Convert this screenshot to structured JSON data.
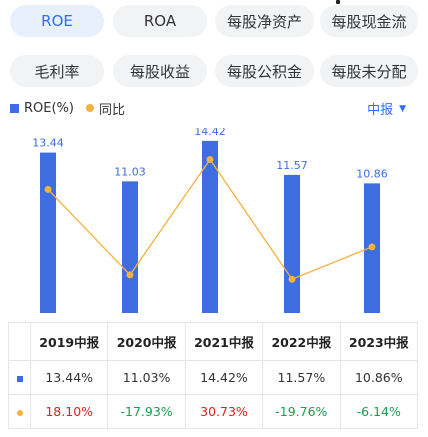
{
  "tabs_row1": [
    {
      "label": "ROE",
      "active": true
    },
    {
      "label": "ROA",
      "active": false
    },
    {
      "label": "每股净资产",
      "active": false
    },
    {
      "label": "每股现金流",
      "active": false
    }
  ],
  "tabs_row2": [
    {
      "label": "毛利率",
      "active": false
    },
    {
      "label": "每股收益",
      "active": false
    },
    {
      "label": "每股公积金",
      "active": false
    },
    {
      "label": "每股未分配",
      "active": false
    }
  ],
  "legend": {
    "bar_label": "ROE(%)",
    "line_label": "同比",
    "period_select": "中报",
    "caret": "▼"
  },
  "colors": {
    "bar": "#3d6de0",
    "line": "#f5b13d",
    "accent": "#2f6bff",
    "positive": "#e02020",
    "negative": "#1a9e50"
  },
  "chart_data": {
    "type": "bar",
    "categories": [
      "2019中报",
      "2020中报",
      "2021中报",
      "2022中报",
      "2023中报"
    ],
    "series": [
      {
        "name": "ROE(%)",
        "type": "bar",
        "values": [
          13.44,
          11.03,
          14.42,
          11.57,
          10.86
        ]
      },
      {
        "name": "同比",
        "type": "line",
        "values": [
          18.1,
          -17.93,
          30.73,
          -19.76,
          -6.14
        ]
      }
    ],
    "bar_ylim": [
      0,
      15.5
    ],
    "line_ylim": [
      -34,
      44
    ],
    "value_labels": [
      "13.44",
      "11.03",
      "14.42",
      "11.57",
      "10.86"
    ]
  },
  "table": {
    "headers": [
      "2019中报",
      "2020中报",
      "2021中报",
      "2022中报",
      "2023中报"
    ],
    "roe_row": [
      "13.44%",
      "11.03%",
      "14.42%",
      "11.57%",
      "10.86%"
    ],
    "yoy_row": [
      "18.10%",
      "-17.93%",
      "30.73%",
      "-19.76%",
      "-6.14%"
    ]
  }
}
